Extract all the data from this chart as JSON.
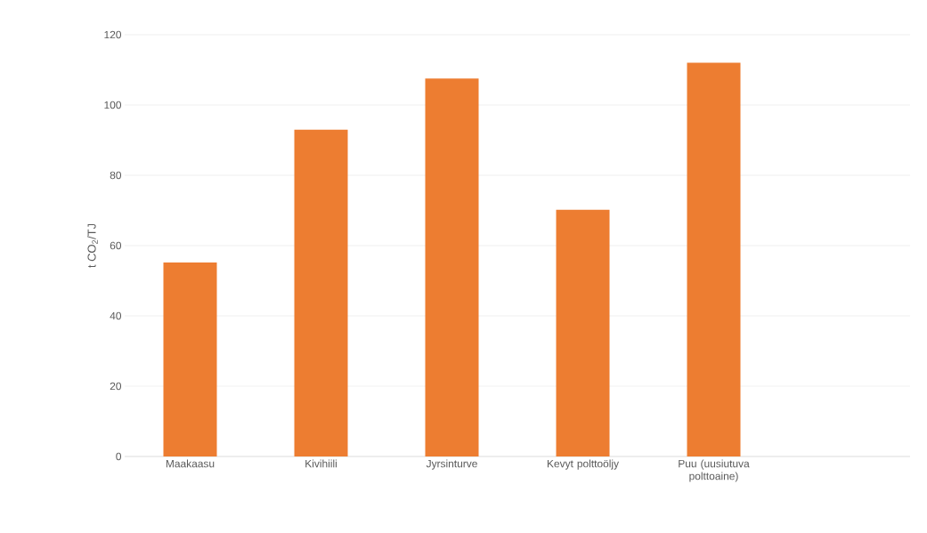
{
  "chart_data": {
    "type": "bar",
    "ylabel": "t CO$_{2}$/TJ",
    "categories": [
      "Maakaasu",
      "Kivihiili",
      "Jyrsinturve",
      "Kevyt polttoöljy",
      "Puu (uusiutuva polttoaine)",
      null
    ],
    "values": [
      55.2,
      93,
      107.5,
      70.2,
      112,
      null
    ],
    "color": "#ed7d31",
    "ylim": [
      0,
      120
    ],
    "yticks": [
      0,
      20,
      40,
      60,
      80,
      100,
      120
    ],
    "grid": "y"
  }
}
